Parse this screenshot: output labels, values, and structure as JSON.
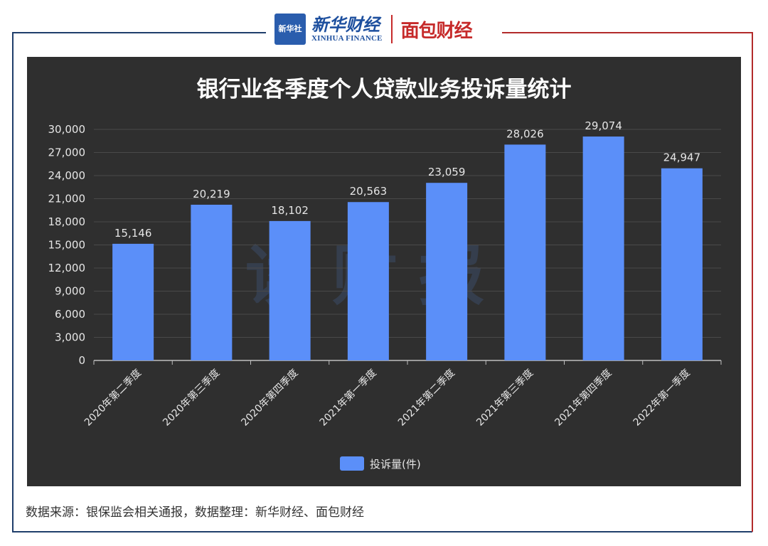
{
  "header": {
    "xinhua_badge": "新华社",
    "xinhua_name": "新华财经",
    "xinhua_english": "XINHUA FINANCE",
    "mianbao_name": "面包财经"
  },
  "watermark": "读财报",
  "source": "数据来源：银保监会相关通报，数据整理：新华财经、面包财经",
  "colors": {
    "panel_bg": "#2f2f2f",
    "bar": "#5b8ff9",
    "frame_left": "#1f3e6b",
    "frame_right": "#b22a2a"
  },
  "chart_data": {
    "type": "bar",
    "title": "银行业各季度个人贷款业务投诉量统计",
    "categories": [
      "2020年第二季度",
      "2020年第三季度",
      "2020年第四季度",
      "2021年第一季度",
      "2021年第二季度",
      "2021年第三季度",
      "2021年第四季度",
      "2022年第一季度"
    ],
    "series": [
      {
        "name": "投诉量(件)",
        "values": [
          15146,
          20219,
          18102,
          20563,
          23059,
          28026,
          29074,
          24947
        ]
      }
    ],
    "data_labels": [
      "15,146",
      "20,219",
      "18,102",
      "20,563",
      "23,059",
      "28,026",
      "29,074",
      "24,947"
    ],
    "yticks": [
      "0",
      "3,000",
      "6,000",
      "9,000",
      "12,000",
      "15,000",
      "18,000",
      "21,000",
      "24,000",
      "27,000",
      "30,000"
    ],
    "ylim": [
      0,
      30000
    ],
    "grid": true,
    "legend_position": "bottom-center"
  }
}
